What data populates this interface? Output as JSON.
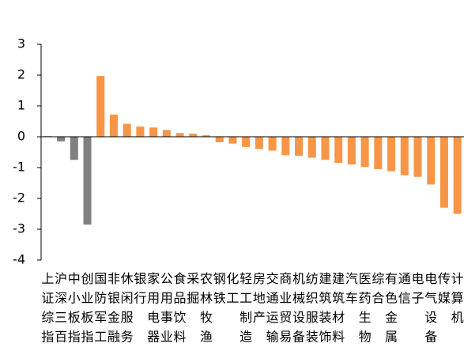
{
  "chart_data": {
    "type": "bar",
    "categories": [
      "上证综指",
      "沪深三百",
      "中小板指",
      "创业板指",
      "国防军工",
      "非银金融",
      "休闲服务",
      "银行",
      "家用电器",
      "公用事业",
      "食品饮料",
      "采掘",
      "农林牧渔",
      "钢铁",
      "化工",
      "轻工制造",
      "房地产",
      "交通运输",
      "商业贸易",
      "机械设备",
      "纺织服装",
      "建筑装饰",
      "建筑材料",
      "汽车",
      "医药生物",
      "综合",
      "有色金属",
      "通信",
      "电子",
      "电气设备",
      "传媒",
      "计算机"
    ],
    "values": [
      0.02,
      -0.15,
      -0.75,
      -2.85,
      1.97,
      0.72,
      0.42,
      0.33,
      0.3,
      0.22,
      0.12,
      0.1,
      0.05,
      -0.18,
      -0.22,
      -0.33,
      -0.4,
      -0.45,
      -0.6,
      -0.62,
      -0.68,
      -0.75,
      -0.85,
      -0.9,
      -0.98,
      -1.05,
      -1.12,
      -1.25,
      -1.3,
      -1.55,
      -2.3,
      -2.5
    ],
    "colors": [
      "#808080",
      "#808080",
      "#808080",
      "#808080",
      "#f79646",
      "#f79646",
      "#f79646",
      "#f79646",
      "#f79646",
      "#f79646",
      "#f79646",
      "#f79646",
      "#f79646",
      "#f79646",
      "#f79646",
      "#f79646",
      "#f79646",
      "#f79646",
      "#f79646",
      "#f79646",
      "#f79646",
      "#f79646",
      "#f79646",
      "#f79646",
      "#f79646",
      "#f79646",
      "#f79646",
      "#f79646",
      "#f79646",
      "#f79646",
      "#f79646",
      "#f79646"
    ],
    "ylim": [
      -4,
      3
    ],
    "yticks": [
      -4,
      -3,
      -2,
      -1,
      0,
      1,
      2,
      3
    ]
  }
}
